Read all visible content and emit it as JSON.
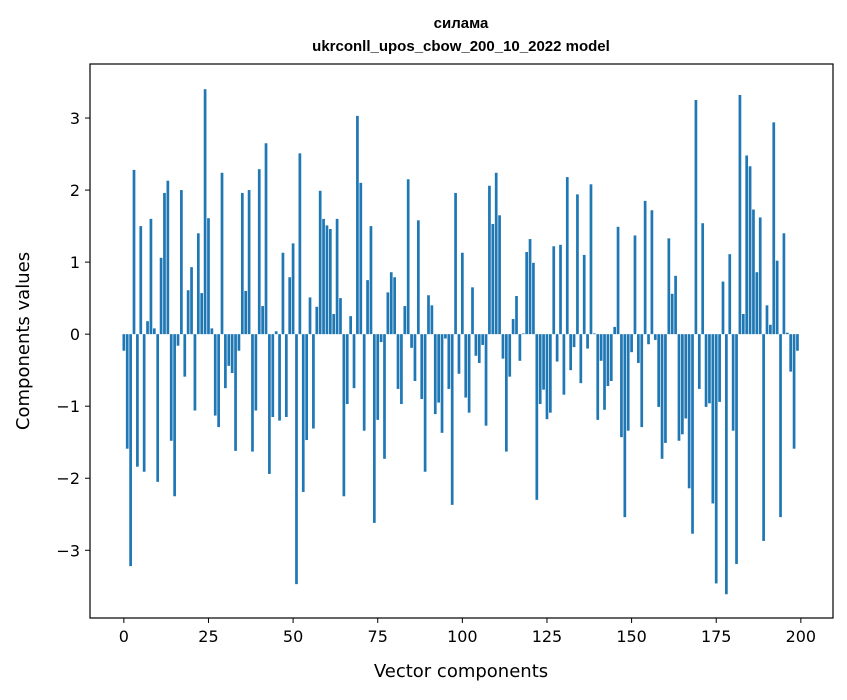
{
  "chart_data": {
    "type": "bar",
    "title": [
      "силама",
      "ukrconll_upos_cbow_200_10_2022 model"
    ],
    "xlabel": "Vector components",
    "ylabel": "Components values",
    "xlim": [
      -10,
      209.5
    ],
    "ylim": [
      -3.94,
      3.75
    ],
    "xticks": [
      0,
      25,
      50,
      75,
      100,
      125,
      150,
      175,
      200
    ],
    "yticks": [
      -3,
      -2,
      -1,
      0,
      1,
      2,
      3
    ],
    "xtick_labels": [
      "0",
      "25",
      "50",
      "75",
      "100",
      "125",
      "150",
      "175",
      "200"
    ],
    "ytick_labels": [
      "−3",
      "−2",
      "−1",
      "0",
      "1",
      "2",
      "3"
    ],
    "grid": false,
    "bar_color": "#1f77b4",
    "bar_width": 0.8,
    "values": [
      -0.23,
      -1.59,
      -3.22,
      2.28,
      -1.84,
      1.5,
      -1.91,
      0.18,
      1.6,
      0.08,
      -2.05,
      1.06,
      1.96,
      2.13,
      -1.48,
      -2.25,
      -0.16,
      2.0,
      -0.59,
      0.61,
      0.93,
      -1.06,
      1.4,
      0.57,
      3.4,
      1.61,
      0.08,
      -1.13,
      -1.29,
      2.24,
      -0.75,
      -0.44,
      -0.54,
      -1.62,
      -0.23,
      1.96,
      0.6,
      2.0,
      -1.63,
      -1.06,
      2.29,
      0.39,
      2.65,
      -1.94,
      -1.15,
      0.04,
      -1.2,
      1.13,
      -1.15,
      0.79,
      1.26,
      -3.47,
      2.51,
      -2.19,
      -1.47,
      0.51,
      -1.31,
      0.38,
      1.99,
      1.6,
      1.51,
      1.46,
      0.28,
      1.6,
      0.5,
      -2.25,
      -0.97,
      0.25,
      -0.75,
      3.03,
      2.1,
      -1.34,
      0.75,
      1.5,
      -2.62,
      -1.19,
      -0.11,
      -1.73,
      0.58,
      0.86,
      0.79,
      -0.76,
      -0.97,
      0.39,
      2.15,
      -0.19,
      -0.65,
      1.58,
      -0.9,
      -1.91,
      0.54,
      0.4,
      -1.11,
      -0.95,
      -1.37,
      -0.06,
      -0.76,
      -2.37,
      1.96,
      -0.55,
      1.13,
      -0.88,
      -1.09,
      0.65,
      -0.3,
      -0.4,
      -0.15,
      -1.27,
      2.06,
      1.53,
      2.24,
      1.65,
      -0.34,
      -1.63,
      -0.59,
      0.21,
      0.53,
      -0.37,
      0.01,
      1.14,
      1.32,
      0.99,
      -2.3,
      -0.97,
      -0.77,
      -1.18,
      -1.09,
      1.22,
      -0.38,
      1.24,
      -0.84,
      2.18,
      -0.5,
      -0.18,
      1.94,
      -0.68,
      1.1,
      -0.2,
      2.08,
      0.01,
      -1.19,
      -0.37,
      -1.05,
      -0.72,
      -0.65,
      0.1,
      1.49,
      -1.43,
      -2.54,
      -1.34,
      -0.25,
      1.37,
      -0.4,
      -1.29,
      1.85,
      -0.14,
      1.72,
      -0.08,
      -1.01,
      -1.73,
      -1.51,
      1.33,
      0.56,
      0.81,
      -1.48,
      -1.39,
      -1.17,
      -2.14,
      -2.77,
      3.25,
      -0.76,
      1.54,
      -1.01,
      -0.96,
      -2.35,
      -3.46,
      -0.94,
      0.73,
      -3.61,
      1.11,
      -1.34,
      -3.19,
      3.32,
      0.28,
      2.48,
      2.33,
      1.73,
      0.86,
      1.62,
      -2.87,
      0.4,
      0.13,
      2.94,
      1.02,
      -2.54,
      1.4,
      0.02,
      -0.52,
      -1.59,
      -0.23
    ]
  }
}
